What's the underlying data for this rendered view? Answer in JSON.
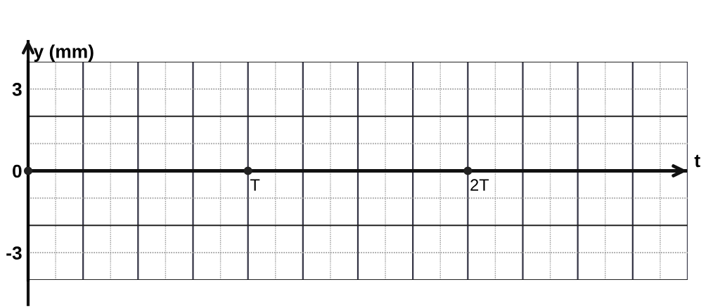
{
  "chart_data": {
    "type": "scatter",
    "xlabel": "t",
    "ylabel": "y (mm)",
    "categories": [
      null,
      "T",
      "2T",
      null
    ],
    "series": [
      {
        "color": "#222222",
        "values": [
          0,
          0,
          0,
          null
        ]
      }
    ],
    "ylim": [
      -4,
      4
    ],
    "yticks": [
      -3,
      0,
      3
    ],
    "grid": true,
    "marker": "circle",
    "legend": false
  }
}
